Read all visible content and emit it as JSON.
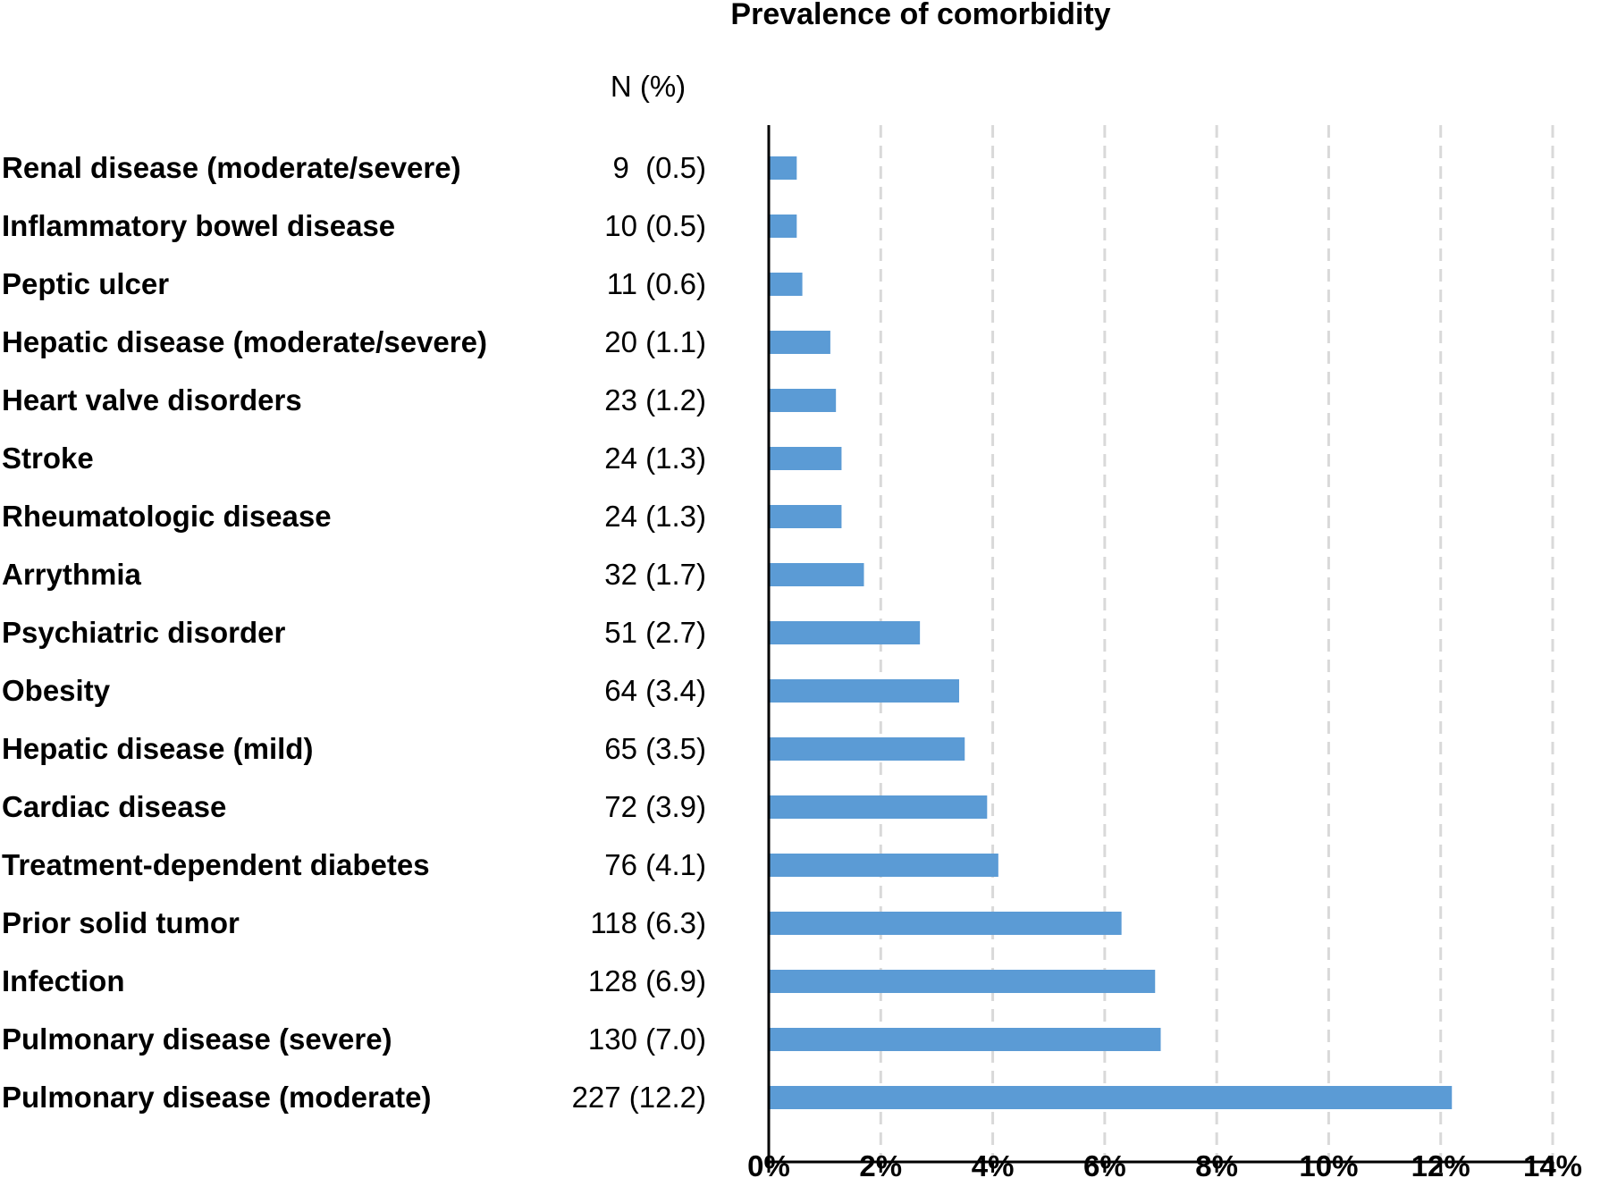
{
  "chart_data": {
    "type": "bar",
    "orientation": "horizontal",
    "title": "Prevalence of comorbidity",
    "table_header": "N (%)",
    "categories": [
      "Renal disease (moderate/severe)",
      "Inflammatory bowel disease",
      "Peptic ulcer",
      "Hepatic disease (moderate/severe)",
      "Heart valve disorders",
      "Stroke",
      "Rheumatologic disease",
      "Arrythmia",
      "Psychiatric disorder",
      "Obesity",
      "Hepatic disease (mild)",
      "Cardiac disease",
      "Treatment-dependent diabetes",
      "Prior solid tumor",
      "Infection",
      "Pulmonary disease (severe)",
      "Pulmonary disease (moderate)"
    ],
    "n_labels": [
      "9  (0.5)",
      "10 (0.5)",
      "11 (0.6)",
      "20 (1.1)",
      "23 (1.2)",
      "24 (1.3)",
      "24 (1.3)",
      "32 (1.7)",
      "51 (2.7)",
      "64 (3.4)",
      "65 (3.5)",
      "72 (3.9)",
      "76 (4.1)",
      "118 (6.3)",
      "128 (6.9)",
      "130 (7.0)",
      "227 (12.2)"
    ],
    "values": [
      0.5,
      0.5,
      0.6,
      1.1,
      1.2,
      1.3,
      1.3,
      1.7,
      2.7,
      3.4,
      3.5,
      3.9,
      4.1,
      6.3,
      6.9,
      7.0,
      12.2
    ],
    "xlim": [
      0,
      14
    ],
    "x_ticks": [
      0,
      2,
      4,
      6,
      8,
      10,
      12,
      14
    ],
    "x_tick_labels": [
      "0%",
      "2%",
      "4%",
      "6%",
      "8%",
      "10%",
      "12%",
      "14%"
    ],
    "grid": "vertical-dashed",
    "bar_color": "#5b9bd5",
    "grid_color": "#d9d9d9"
  }
}
